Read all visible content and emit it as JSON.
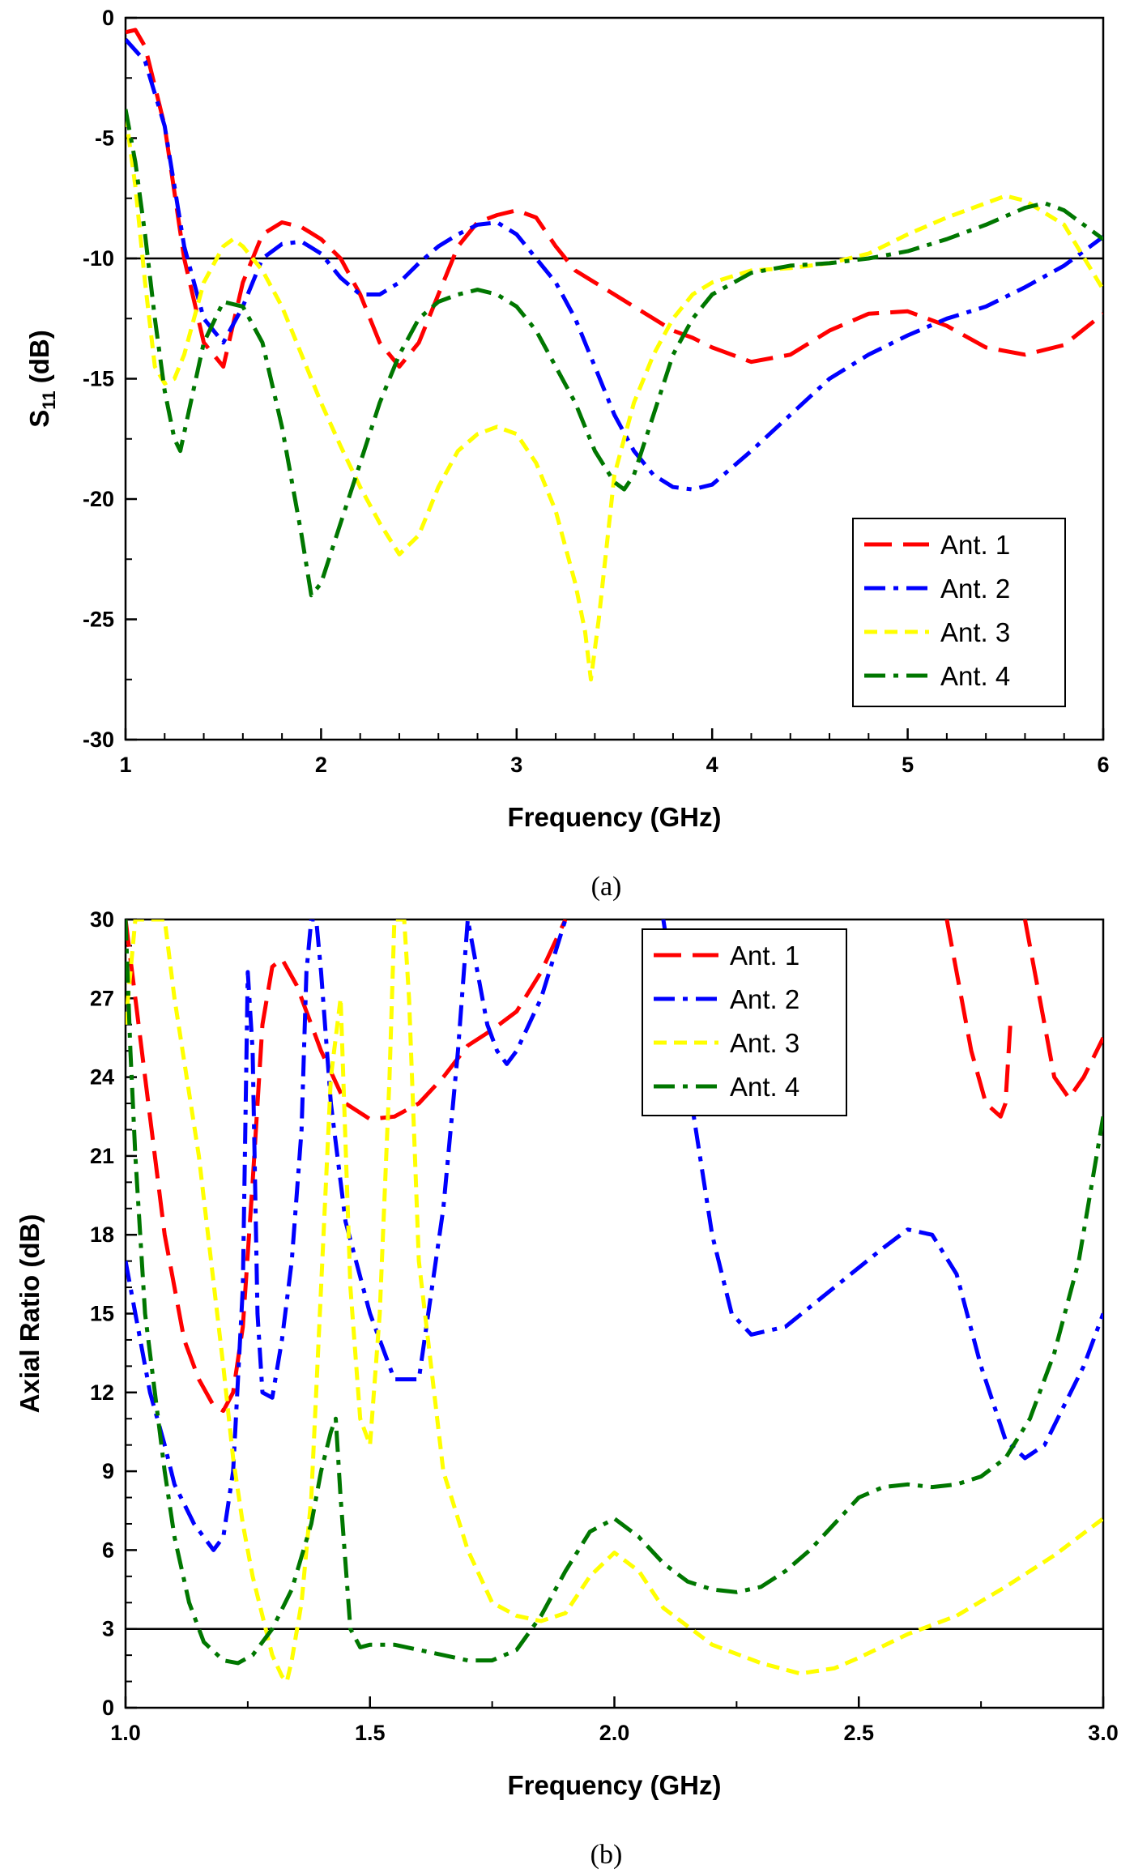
{
  "chart_data": [
    {
      "panel_label": "(a)",
      "type": "line",
      "xlabel": "Frequency (GHz)",
      "ylabel_main": "S",
      "ylabel_sub": "11",
      "ylabel_unit": " (dB)",
      "xlim": [
        1,
        6
      ],
      "ylim": [
        -30,
        0
      ],
      "xticks": [
        1,
        2,
        3,
        4,
        5,
        6
      ],
      "yticks": [
        -30,
        -25,
        -20,
        -15,
        -10,
        -5,
        0
      ],
      "reference_line": -10,
      "legend_position": "bottom-right",
      "series": [
        {
          "name": "Ant. 1",
          "color": "#ff0000",
          "dash": "long-dash",
          "x": [
            1.0,
            1.05,
            1.1,
            1.2,
            1.3,
            1.4,
            1.5,
            1.6,
            1.7,
            1.8,
            1.9,
            2.0,
            2.1,
            2.2,
            2.3,
            2.4,
            2.5,
            2.6,
            2.7,
            2.8,
            2.9,
            3.0,
            3.1,
            3.2,
            3.3,
            3.4,
            3.5,
            3.6,
            3.7,
            3.8,
            3.9,
            4.0,
            4.2,
            4.4,
            4.6,
            4.8,
            5.0,
            5.2,
            5.4,
            5.6,
            5.8,
            6.0
          ],
          "y": [
            -0.6,
            -0.5,
            -1.2,
            -4.5,
            -10.0,
            -13.5,
            -14.5,
            -11.0,
            -9.0,
            -8.5,
            -8.7,
            -9.2,
            -10.0,
            -11.5,
            -13.5,
            -14.5,
            -13.5,
            -11.5,
            -9.5,
            -8.5,
            -8.2,
            -8.0,
            -8.3,
            -9.5,
            -10.5,
            -11.0,
            -11.5,
            -12.0,
            -12.5,
            -13.0,
            -13.3,
            -13.7,
            -14.3,
            -14.0,
            -13.0,
            -12.3,
            -12.2,
            -12.8,
            -13.7,
            -14.0,
            -13.6,
            -12.3
          ]
        },
        {
          "name": "Ant. 2",
          "color": "#0000ff",
          "dash": "dash-dot",
          "x": [
            1.0,
            1.1,
            1.2,
            1.3,
            1.4,
            1.5,
            1.6,
            1.7,
            1.8,
            1.9,
            2.0,
            2.1,
            2.2,
            2.3,
            2.4,
            2.5,
            2.6,
            2.7,
            2.8,
            2.9,
            3.0,
            3.1,
            3.2,
            3.3,
            3.4,
            3.5,
            3.6,
            3.7,
            3.8,
            3.9,
            4.0,
            4.2,
            4.4,
            4.6,
            4.8,
            5.0,
            5.2,
            5.4,
            5.6,
            5.8,
            6.0
          ],
          "y": [
            -0.9,
            -1.8,
            -4.5,
            -9.5,
            -12.5,
            -13.5,
            -12.0,
            -10.0,
            -9.4,
            -9.3,
            -9.8,
            -10.8,
            -11.5,
            -11.5,
            -11.0,
            -10.2,
            -9.5,
            -9.0,
            -8.6,
            -8.5,
            -9.0,
            -10.0,
            -11.0,
            -12.5,
            -14.5,
            -16.5,
            -18.0,
            -19.0,
            -19.5,
            -19.6,
            -19.4,
            -18.0,
            -16.5,
            -15.0,
            -14.0,
            -13.2,
            -12.5,
            -12.0,
            -11.2,
            -10.3,
            -9.1
          ]
        },
        {
          "name": "Ant. 3",
          "color": "#ffff00",
          "dash": "short-dash",
          "x": [
            1.0,
            1.05,
            1.1,
            1.15,
            1.2,
            1.25,
            1.3,
            1.4,
            1.5,
            1.55,
            1.6,
            1.7,
            1.8,
            1.9,
            2.0,
            2.1,
            2.2,
            2.3,
            2.4,
            2.5,
            2.6,
            2.7,
            2.8,
            2.9,
            3.0,
            3.1,
            3.2,
            3.3,
            3.35,
            3.38,
            3.42,
            3.5,
            3.6,
            3.7,
            3.8,
            3.9,
            4.0,
            4.2,
            4.4,
            4.6,
            4.8,
            5.0,
            5.2,
            5.4,
            5.5,
            5.6,
            5.8,
            6.0
          ],
          "y": [
            -4.0,
            -7.0,
            -11.0,
            -14.5,
            -15.2,
            -15.0,
            -14.0,
            -11.0,
            -9.5,
            -9.2,
            -9.5,
            -10.5,
            -12.0,
            -14.0,
            -16.0,
            -17.8,
            -19.5,
            -21.0,
            -22.3,
            -21.5,
            -19.5,
            -18.0,
            -17.3,
            -17.0,
            -17.3,
            -18.5,
            -20.5,
            -23.5,
            -25.5,
            -27.5,
            -25.0,
            -19.0,
            -16.0,
            -14.0,
            -12.5,
            -11.5,
            -11.0,
            -10.5,
            -10.4,
            -10.2,
            -9.8,
            -9.0,
            -8.3,
            -7.7,
            -7.4,
            -7.6,
            -8.6,
            -11.3
          ]
        },
        {
          "name": "Ant. 4",
          "color": "#007700",
          "dash": "dash-dot",
          "x": [
            1.0,
            1.05,
            1.1,
            1.15,
            1.2,
            1.25,
            1.28,
            1.32,
            1.4,
            1.5,
            1.6,
            1.7,
            1.8,
            1.9,
            1.95,
            2.0,
            2.1,
            2.2,
            2.3,
            2.4,
            2.5,
            2.6,
            2.7,
            2.8,
            2.9,
            3.0,
            3.1,
            3.2,
            3.3,
            3.4,
            3.5,
            3.55,
            3.6,
            3.7,
            3.8,
            3.9,
            4.0,
            4.2,
            4.4,
            4.6,
            4.8,
            5.0,
            5.2,
            5.4,
            5.6,
            5.7,
            5.8,
            6.0
          ],
          "y": [
            -3.8,
            -6.0,
            -9.0,
            -12.5,
            -15.5,
            -17.5,
            -18.0,
            -16.5,
            -13.5,
            -11.8,
            -12.0,
            -13.5,
            -17.0,
            -21.5,
            -24.0,
            -23.5,
            -21.0,
            -18.5,
            -16.0,
            -14.0,
            -12.5,
            -11.8,
            -11.5,
            -11.3,
            -11.5,
            -12.0,
            -13.0,
            -14.5,
            -16.0,
            -18.0,
            -19.3,
            -19.6,
            -19.0,
            -16.5,
            -14.0,
            -12.5,
            -11.5,
            -10.6,
            -10.3,
            -10.2,
            -10.0,
            -9.7,
            -9.2,
            -8.6,
            -7.9,
            -7.7,
            -8.0,
            -9.2
          ]
        }
      ]
    },
    {
      "panel_label": "(b)",
      "type": "line",
      "xlabel": "Frequency (GHz)",
      "ylabel": "Axial Ratio (dB)",
      "xlim": [
        1.0,
        3.0
      ],
      "ylim": [
        0,
        30
      ],
      "xticks": [
        1.0,
        1.5,
        2.0,
        2.5,
        3.0
      ],
      "yticks": [
        0,
        3,
        6,
        9,
        12,
        15,
        18,
        21,
        24,
        27,
        30
      ],
      "reference_line": 3,
      "legend_position": "top-right",
      "series": [
        {
          "name": "Ant. 1",
          "color": "#ff0000",
          "dash": "long-dash",
          "x": [
            1.0,
            1.02,
            1.04,
            1.06,
            1.08,
            1.1,
            1.12,
            1.15,
            1.18,
            1.2,
            1.22,
            1.24,
            1.26,
            1.28,
            1.3,
            1.32,
            1.35,
            1.38,
            1.4,
            1.42,
            1.45,
            1.5,
            1.55,
            1.6,
            1.65,
            1.7,
            1.75,
            1.8,
            1.85,
            1.9,
            null,
            2.68,
            2.7,
            2.73,
            2.76,
            2.79,
            2.8,
            2.81,
            null,
            2.84,
            2.86,
            2.88,
            2.9,
            2.93,
            2.96,
            3.0
          ],
          "y": [
            30,
            27,
            24,
            21,
            18,
            16,
            14,
            12.5,
            11.5,
            11.3,
            12.0,
            14.5,
            20,
            26,
            28.2,
            28.5,
            27.5,
            26,
            25,
            24.2,
            23,
            22.4,
            22.5,
            23,
            24,
            25.2,
            25.8,
            26.5,
            28.0,
            30,
            null,
            30,
            28,
            25,
            23,
            22.5,
            23,
            26,
            null,
            30,
            28,
            26,
            24,
            23.2,
            24,
            25.5
          ]
        },
        {
          "name": "Ant. 2",
          "color": "#0000ff",
          "dash": "dash-dot",
          "x": [
            1.0,
            1.02,
            1.05,
            1.08,
            1.1,
            1.14,
            1.18,
            1.2,
            1.22,
            1.24,
            1.25,
            1.26,
            1.27,
            1.28,
            1.3,
            1.32,
            1.34,
            1.36,
            1.37,
            1.38,
            1.39,
            1.4,
            1.42,
            1.45,
            1.5,
            1.55,
            1.6,
            1.65,
            1.68,
            1.7,
            1.72,
            1.74,
            1.76,
            1.78,
            1.8,
            1.85,
            1.9,
            null,
            2.1,
            2.15,
            2.2,
            2.24,
            2.28,
            2.35,
            2.45,
            2.55,
            2.6,
            2.65,
            2.7,
            2.75,
            2.8,
            2.84,
            2.88,
            2.92,
            2.96,
            3.0
          ],
          "y": [
            17,
            15,
            12,
            10,
            8.5,
            7,
            6,
            6.5,
            9,
            16,
            28,
            25,
            15,
            12,
            11.8,
            14,
            17,
            22,
            28,
            30,
            30,
            28,
            23,
            18.5,
            15,
            12.5,
            12.5,
            19,
            25,
            30,
            28,
            26,
            25,
            24.5,
            25,
            27,
            30,
            null,
            30,
            24,
            18,
            15,
            14.2,
            14.5,
            16,
            17.5,
            18.2,
            18,
            16.5,
            13,
            10.2,
            9.5,
            10,
            11.5,
            13,
            15
          ]
        },
        {
          "name": "Ant. 3",
          "color": "#ffff00",
          "dash": "short-dash",
          "x": [
            1.0,
            1.02,
            1.04,
            1.06,
            1.08,
            1.1,
            1.15,
            1.2,
            1.22,
            1.24,
            1.26,
            1.28,
            1.3,
            1.32,
            1.33,
            1.34,
            1.36,
            1.38,
            1.4,
            1.42,
            1.44,
            1.46,
            1.48,
            1.5,
            1.52,
            1.54,
            1.55,
            1.56,
            1.57,
            1.58,
            1.6,
            1.65,
            1.7,
            1.75,
            1.8,
            1.85,
            1.9,
            1.95,
            2.0,
            2.05,
            2.1,
            2.2,
            2.3,
            2.38,
            2.45,
            2.5,
            2.6,
            2.7,
            2.8,
            2.9,
            3.0
          ],
          "y": [
            26,
            30,
            30,
            30,
            30,
            27,
            21,
            13,
            9.5,
            7,
            5,
            3.5,
            2.0,
            1.2,
            1.0,
            1.8,
            4,
            8,
            16,
            24,
            27,
            16,
            11,
            10,
            15,
            24,
            30,
            30,
            30,
            27,
            17,
            9.0,
            6.0,
            4.0,
            3.5,
            3.3,
            3.6,
            5.0,
            5.9,
            5.2,
            3.8,
            2.4,
            1.7,
            1.3,
            1.5,
            1.9,
            2.8,
            3.5,
            4.6,
            5.8,
            7.2
          ]
        },
        {
          "name": "Ant. 4",
          "color": "#007700",
          "dash": "dash-dot",
          "x": [
            1.0,
            1.01,
            1.02,
            1.03,
            1.04,
            1.06,
            1.08,
            1.1,
            1.13,
            1.16,
            1.2,
            1.23,
            1.26,
            1.3,
            1.34,
            1.38,
            1.4,
            1.42,
            1.43,
            1.44,
            1.46,
            1.48,
            1.5,
            1.55,
            1.6,
            1.65,
            1.7,
            1.75,
            1.8,
            1.85,
            1.9,
            1.95,
            2.0,
            2.05,
            2.1,
            2.15,
            2.2,
            2.25,
            2.3,
            2.35,
            2.4,
            2.45,
            2.5,
            2.55,
            2.6,
            2.65,
            2.7,
            2.75,
            2.8,
            2.85,
            2.9,
            2.95,
            3.0
          ],
          "y": [
            30,
            25,
            21,
            18,
            15,
            12,
            9.0,
            6.5,
            4.0,
            2.5,
            1.8,
            1.7,
            2.0,
            3.0,
            4.5,
            7.0,
            9.0,
            10.5,
            11.0,
            8.0,
            3.0,
            2.3,
            2.4,
            2.4,
            2.2,
            2.0,
            1.8,
            1.8,
            2.2,
            3.5,
            5.2,
            6.7,
            7.2,
            6.5,
            5.5,
            4.8,
            4.5,
            4.4,
            4.6,
            5.2,
            6.0,
            7.0,
            8.0,
            8.4,
            8.5,
            8.4,
            8.5,
            8.8,
            9.5,
            11.0,
            13.5,
            17.0,
            22.5
          ]
        }
      ]
    }
  ]
}
